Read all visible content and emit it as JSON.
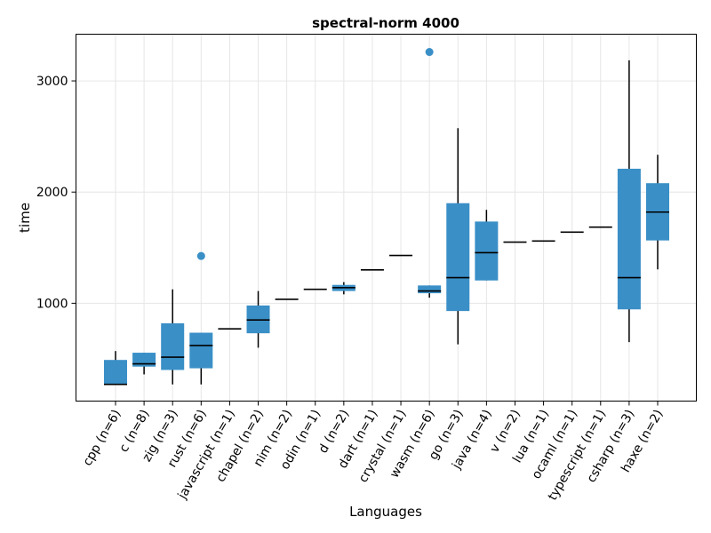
{
  "chart_data": {
    "type": "boxplot",
    "title": "spectral-norm 4000",
    "xlabel": "Languages",
    "ylabel": "time",
    "ylim": [
      120,
      3420
    ],
    "yticks": [
      1000,
      2000,
      3000
    ],
    "grid": true,
    "color": "#3a8fc7",
    "categories": [
      {
        "label": "cpp (n=6)",
        "q1": 270,
        "median": 270,
        "q3": 490,
        "whisker_low": 270,
        "whisker_high": 570,
        "outliers": []
      },
      {
        "label": "c (n=8)",
        "q1": 430,
        "median": 455,
        "q3": 555,
        "whisker_low": 360,
        "whisker_high": 555,
        "outliers": []
      },
      {
        "label": "zig (n=3)",
        "q1": 400,
        "median": 515,
        "q3": 820,
        "whisker_low": 270,
        "whisker_high": 1125,
        "outliers": []
      },
      {
        "label": "rust (n=6)",
        "q1": 415,
        "median": 620,
        "q3": 735,
        "whisker_low": 270,
        "whisker_high": 735,
        "outliers": [
          1425
        ]
      },
      {
        "label": "javascript (n=1)",
        "q1": 770,
        "median": 770,
        "q3": 770,
        "whisker_low": 770,
        "whisker_high": 770,
        "outliers": []
      },
      {
        "label": "chapel (n=2)",
        "q1": 730,
        "median": 850,
        "q3": 980,
        "whisker_low": 600,
        "whisker_high": 1110,
        "outliers": []
      },
      {
        "label": "nim (n=2)",
        "q1": 1035,
        "median": 1035,
        "q3": 1035,
        "whisker_low": 1035,
        "whisker_high": 1035,
        "outliers": []
      },
      {
        "label": "odin (n=1)",
        "q1": 1125,
        "median": 1125,
        "q3": 1125,
        "whisker_low": 1125,
        "whisker_high": 1125,
        "outliers": []
      },
      {
        "label": "d (n=2)",
        "q1": 1110,
        "median": 1140,
        "q3": 1165,
        "whisker_low": 1080,
        "whisker_high": 1190,
        "outliers": []
      },
      {
        "label": "dart (n=1)",
        "q1": 1300,
        "median": 1300,
        "q3": 1300,
        "whisker_low": 1300,
        "whisker_high": 1300,
        "outliers": []
      },
      {
        "label": "crystal (n=1)",
        "q1": 1430,
        "median": 1430,
        "q3": 1430,
        "whisker_low": 1430,
        "whisker_high": 1430,
        "outliers": []
      },
      {
        "label": "wasm (n=6)",
        "q1": 1090,
        "median": 1110,
        "q3": 1160,
        "whisker_low": 1050,
        "whisker_high": 1160,
        "outliers": [
          3260
        ]
      },
      {
        "label": "go (n=3)",
        "q1": 930,
        "median": 1230,
        "q3": 1900,
        "whisker_low": 630,
        "whisker_high": 2575,
        "outliers": []
      },
      {
        "label": "java (n=4)",
        "q1": 1205,
        "median": 1455,
        "q3": 1735,
        "whisker_low": 1205,
        "whisker_high": 1840,
        "outliers": []
      },
      {
        "label": "v (n=2)",
        "q1": 1550,
        "median": 1550,
        "q3": 1550,
        "whisker_low": 1550,
        "whisker_high": 1550,
        "outliers": []
      },
      {
        "label": "lua (n=1)",
        "q1": 1560,
        "median": 1560,
        "q3": 1560,
        "whisker_low": 1560,
        "whisker_high": 1560,
        "outliers": []
      },
      {
        "label": "ocaml (n=1)",
        "q1": 1640,
        "median": 1640,
        "q3": 1640,
        "whisker_low": 1640,
        "whisker_high": 1640,
        "outliers": []
      },
      {
        "label": "typescript (n=1)",
        "q1": 1685,
        "median": 1685,
        "q3": 1685,
        "whisker_low": 1685,
        "whisker_high": 1685,
        "outliers": []
      },
      {
        "label": "csharp (n=3)",
        "q1": 945,
        "median": 1230,
        "q3": 2210,
        "whisker_low": 650,
        "whisker_high": 3185,
        "outliers": []
      },
      {
        "label": "haxe (n=2)",
        "q1": 1565,
        "median": 1820,
        "q3": 2080,
        "whisker_low": 1305,
        "whisker_high": 2335,
        "outliers": []
      }
    ]
  }
}
